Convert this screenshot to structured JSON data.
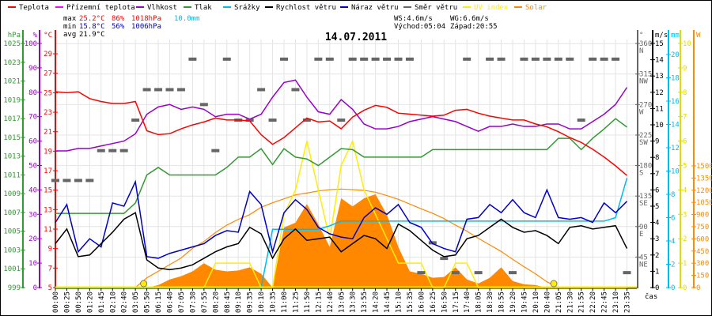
{
  "colors": {
    "temp": "#ff0000",
    "dew": "#ff00ff",
    "hum": "#9900cc",
    "press": "#339933",
    "rain": "#00bbee",
    "wind": "#000000",
    "gust": "#0000cc",
    "dir": "#666666",
    "uv": "#ffee00",
    "solar": "#ff8800",
    "grid": "#e4e4e4",
    "stat_max": "#ff0000",
    "stat_min": "#0000cc",
    "stat_rain": "#00bbee"
  },
  "legend": [
    {
      "label": "Teplota",
      "color": "#ff0000"
    },
    {
      "label": "Přízemní teplota",
      "color": "#ff00ff"
    },
    {
      "label": "Vlhkost",
      "color": "#9900cc"
    },
    {
      "label": "Tlak",
      "color": "#339933"
    },
    {
      "label": "Srážky",
      "color": "#00bbee"
    },
    {
      "label": "Rychlost větru",
      "color": "#000000"
    },
    {
      "label": "Náraz větru",
      "color": "#0000cc"
    },
    {
      "label": "Směr větru",
      "color": "#666666"
    },
    {
      "label": "UV index",
      "color": "#ffee00"
    },
    {
      "label": "Solar",
      "color": "#ff8800"
    }
  ],
  "stats": {
    "max_label": "max",
    "max_temp": "25.2°C",
    "max_hum": "86%",
    "max_press": "1018hPa",
    "max_rain": "10.0mm",
    "min_label": "min",
    "min_temp": "15.8°C",
    "min_hum": "56%",
    "min_press": "1006hPa",
    "avg_label": "avg",
    "avg_temp": "21.9°C",
    "ws": "WS:4.6m/s",
    "wg": "WG:6.6m/s",
    "sunrise": "Východ:05:04",
    "sunset": "Západ:20:55"
  },
  "chart_data": {
    "type": "line",
    "title": "14.07.2011",
    "xlabel": "čas",
    "grid": true,
    "legend_position": "top",
    "sunrise_time": "05:04",
    "sunset_time": "20:55",
    "x": [
      "00:00",
      "00:25",
      "00:50",
      "01:20",
      "01:45",
      "02:10",
      "02:40",
      "03:05",
      "05:50",
      "06:15",
      "06:40",
      "07:05",
      "07:30",
      "07:55",
      "08:20",
      "08:45",
      "09:10",
      "09:35",
      "10:10",
      "10:35",
      "11:00",
      "11:25",
      "11:50",
      "12:15",
      "12:40",
      "13:05",
      "13:30",
      "13:55",
      "14:20",
      "14:45",
      "15:10",
      "15:35",
      "16:00",
      "16:25",
      "16:50",
      "17:15",
      "17:40",
      "18:05",
      "18:30",
      "18:55",
      "19:20",
      "19:45",
      "20:10",
      "20:40",
      "21:05",
      "21:30",
      "21:55",
      "22:20",
      "22:45",
      "23:10",
      "23:35"
    ],
    "axes": {
      "press": {
        "unit": "hPa",
        "range": [
          999,
          1025
        ],
        "ticks": [
          1025,
          1023,
          1021,
          1019,
          1017,
          1015,
          1013,
          1011,
          1009,
          1007,
          1005,
          1003,
          1001,
          999
        ]
      },
      "hum": {
        "unit": "%",
        "range": [
          0,
          100
        ],
        "ticks": [
          100,
          90,
          80,
          70,
          60,
          50,
          40,
          30,
          20,
          10,
          0
        ]
      },
      "temp": {
        "unit": "°C",
        "range": [
          5,
          30.1
        ],
        "ticks": [
          29,
          27,
          25,
          23,
          21,
          19,
          17,
          15,
          13,
          11,
          9,
          7,
          5
        ]
      },
      "dir": {
        "unit": "°",
        "range": [
          0,
          360
        ],
        "ticks": [
          {
            "v": 360,
            "c": "N"
          },
          {
            "v": 315,
            "c": "NW"
          },
          {
            "v": 270,
            "c": "W"
          },
          {
            "v": 225,
            "c": "SW"
          },
          {
            "v": 180,
            "c": "S"
          },
          {
            "v": 135,
            "c": "SE"
          },
          {
            "v": 90,
            "c": "E"
          },
          {
            "v": 45,
            "c": "NE"
          }
        ]
      },
      "wind": {
        "unit": "m/s",
        "range": [
          0,
          15
        ],
        "ticks": [
          15,
          14,
          13,
          12,
          11,
          10,
          9,
          8,
          7,
          6,
          5,
          4,
          3,
          2,
          1,
          0
        ]
      },
      "rain": {
        "unit": "mm",
        "range": [
          0,
          21
        ],
        "ticks": [
          20,
          18,
          16,
          14,
          12,
          10,
          8,
          6,
          4,
          2,
          0
        ]
      },
      "uv": {
        "unit": "",
        "range": [
          0,
          10
        ],
        "ticks": [
          10,
          9,
          8,
          7,
          6,
          5,
          4,
          3,
          2,
          1,
          0
        ]
      },
      "solar": {
        "unit": "W",
        "range": [
          0,
          3010
        ],
        "ticks": [
          1500,
          1350,
          1200,
          1050,
          900,
          750,
          600,
          450,
          300,
          150,
          0
        ]
      }
    },
    "series": [
      {
        "name": "Teplota",
        "axis": "temp",
        "values": [
          25.1,
          25.0,
          25.1,
          24.4,
          24.1,
          23.9,
          23.9,
          24.1,
          21.1,
          20.7,
          20.8,
          21.3,
          21.7,
          22.0,
          22.4,
          22.2,
          22.2,
          22.1,
          20.7,
          19.7,
          20.4,
          21.4,
          22.4,
          22.0,
          22.1,
          21.3,
          22.5,
          23.2,
          23.7,
          23.5,
          22.9,
          22.8,
          22.7,
          22.6,
          22.7,
          23.2,
          23.3,
          22.9,
          22.6,
          22.4,
          22.2,
          22.2,
          21.8,
          21.5,
          21.0,
          20.4,
          19.9,
          19.2,
          18.4,
          17.5,
          16.5
        ]
      },
      {
        "name": "Vlhkost",
        "axis": "hum",
        "values": [
          56,
          56,
          57,
          57,
          58,
          59,
          60,
          63,
          71,
          74,
          75,
          73,
          74,
          73,
          70,
          71,
          71,
          69,
          71,
          78,
          84,
          85,
          78,
          72,
          71,
          77,
          73,
          67,
          65,
          65,
          66,
          68,
          69,
          70,
          69,
          68,
          66,
          64,
          66,
          66,
          67,
          66,
          66,
          67,
          67,
          65,
          65,
          68,
          71,
          75,
          82
        ]
      },
      {
        "name": "Tlak",
        "axis": "press",
        "values": [
          1006.9,
          1006.9,
          1006.9,
          1006.9,
          1006.9,
          1006.9,
          1006.9,
          1008.0,
          1011.0,
          1011.8,
          1011.0,
          1011.0,
          1011.0,
          1011.0,
          1011.0,
          1011.8,
          1012.9,
          1012.9,
          1013.8,
          1012.1,
          1013.8,
          1012.9,
          1012.7,
          1012.0,
          1012.9,
          1013.8,
          1013.7,
          1012.9,
          1012.9,
          1012.9,
          1012.9,
          1012.9,
          1012.9,
          1013.7,
          1013.7,
          1013.7,
          1013.7,
          1013.7,
          1013.7,
          1013.7,
          1013.7,
          1013.7,
          1013.7,
          1013.7,
          1014.9,
          1014.9,
          1013.7,
          1014.9,
          1015.9,
          1017.0,
          1016.1
        ]
      },
      {
        "name": "Srážky",
        "axis": "rain",
        "values": [
          0,
          0,
          0,
          0,
          0,
          0,
          0,
          0,
          0,
          0,
          0,
          0,
          0,
          0,
          0,
          0,
          0,
          0,
          0,
          5.0,
          5.0,
          5.0,
          5.0,
          5.0,
          5.3,
          5.7,
          5.7,
          5.7,
          5.7,
          5.7,
          5.7,
          5.7,
          5.7,
          5.7,
          5.7,
          5.7,
          5.7,
          5.7,
          5.7,
          5.7,
          5.7,
          5.7,
          5.7,
          5.7,
          5.7,
          5.7,
          5.7,
          5.7,
          5.7,
          6.0,
          9.4
        ]
      },
      {
        "name": "Rychlost větru",
        "axis": "wind",
        "values": [
          2.7,
          3.6,
          1.9,
          2.0,
          2.7,
          3.4,
          4.2,
          4.6,
          1.7,
          1.2,
          1.1,
          1.2,
          1.4,
          1.8,
          2.2,
          2.5,
          2.7,
          3.7,
          3.3,
          1.8,
          3.0,
          3.6,
          2.9,
          3.0,
          3.1,
          2.2,
          2.7,
          3.2,
          3.0,
          2.4,
          3.9,
          3.5,
          2.9,
          2.3,
          1.9,
          2.0,
          3.0,
          3.2,
          3.7,
          4.2,
          3.7,
          3.4,
          3.5,
          3.2,
          2.7,
          3.7,
          3.8,
          3.6,
          3.7,
          3.8,
          2.4
        ]
      },
      {
        "name": "Náraz větru",
        "axis": "wind",
        "values": [
          4.0,
          5.1,
          2.2,
          3.0,
          2.5,
          5.2,
          5.0,
          6.5,
          1.9,
          1.8,
          2.1,
          2.3,
          2.5,
          2.7,
          3.2,
          3.5,
          3.4,
          5.9,
          5.1,
          2.2,
          4.6,
          5.4,
          4.8,
          3.7,
          3.3,
          3.1,
          3.0,
          4.3,
          4.9,
          4.5,
          5.1,
          4.0,
          3.7,
          2.7,
          2.4,
          2.2,
          4.2,
          4.3,
          5.1,
          4.6,
          5.4,
          4.6,
          4.3,
          6.0,
          4.3,
          4.2,
          4.3,
          4.0,
          5.2,
          4.6,
          5.3
        ]
      },
      {
        "name": "Směr větru",
        "axis": "dir",
        "values": [
          158,
          158,
          158,
          158,
          202,
          202,
          202,
          247,
          292,
          292,
          292,
          292,
          337,
          270,
          202,
          337,
          247,
          247,
          292,
          247,
          337,
          292,
          247,
          337,
          337,
          247,
          337,
          337,
          337,
          337,
          337,
          337,
          22,
          66,
          43,
          22,
          337,
          22,
          337,
          337,
          22,
          337,
          337,
          337,
          337,
          337,
          247,
          337,
          337,
          337,
          22
        ]
      },
      {
        "name": "UV index",
        "axis": "uv",
        "values": [
          0,
          0,
          0,
          0,
          0,
          0,
          0,
          0,
          0,
          0,
          0,
          0,
          0,
          0,
          1,
          1,
          1,
          1,
          0,
          0,
          3,
          4,
          6,
          4,
          2,
          5,
          6,
          4,
          3,
          2,
          1,
          1,
          1,
          0,
          0,
          1,
          1,
          0,
          0,
          0,
          0,
          0,
          0,
          0,
          0,
          0,
          0,
          0,
          0,
          0,
          0
        ]
      },
      {
        "name": "Solar",
        "axis": "solar",
        "fill": true,
        "values": [
          0,
          0,
          0,
          0,
          0,
          0,
          0,
          0,
          0,
          30,
          100,
          140,
          200,
          300,
          220,
          200,
          210,
          250,
          170,
          0,
          740,
          800,
          1030,
          780,
          500,
          1100,
          1000,
          1100,
          1150,
          900,
          500,
          200,
          170,
          120,
          130,
          250,
          100,
          50,
          120,
          250,
          80,
          40,
          30,
          0,
          0,
          0,
          0,
          0,
          0,
          0,
          0
        ]
      },
      {
        "name": "Solar max",
        "axis": "solar",
        "values": [
          null,
          null,
          null,
          null,
          null,
          null,
          null,
          0,
          120,
          201,
          282,
          364,
          484,
          568,
          678,
          770,
          841,
          899,
          990,
          1045,
          1094,
          1142,
          1165,
          1191,
          1207,
          1214,
          1207,
          1198,
          1175,
          1134,
          1088,
          1029,
          971,
          916,
          850,
          770,
          695,
          607,
          526,
          445,
          348,
          257,
          169,
          71,
          0,
          null,
          null,
          null,
          null,
          null,
          null
        ]
      }
    ]
  }
}
